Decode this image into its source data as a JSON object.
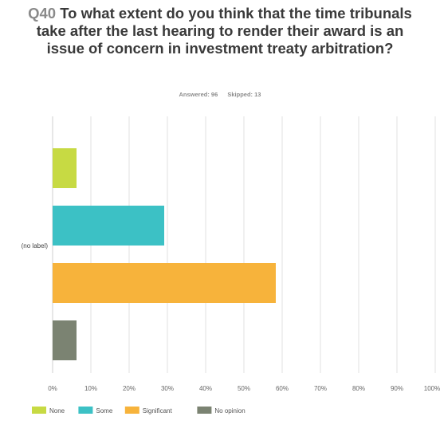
{
  "question": {
    "number": "Q40",
    "text": "To what extent do you think that the time tribunals take after the last hearing to render their award is an issue of concern in investment treaty arbitration?"
  },
  "stats": {
    "answered": "Answered: 96",
    "skipped": "Skipped: 13"
  },
  "chart_data": {
    "type": "bar",
    "orientation": "horizontal",
    "categories": [
      "(no label)"
    ],
    "series": [
      {
        "name": "None",
        "values": [
          6.25
        ],
        "color": "#c7da43"
      },
      {
        "name": "Some",
        "values": [
          29.17
        ],
        "color": "#3cc1c5"
      },
      {
        "name": "Significant",
        "values": [
          58.33
        ],
        "color": "#f7b33b"
      },
      {
        "name": "No opinion",
        "values": [
          6.25
        ],
        "color": "#7b8372"
      }
    ],
    "xlim": [
      0,
      100
    ],
    "x_ticks": [
      "0%",
      "10%",
      "20%",
      "30%",
      "40%",
      "50%",
      "60%",
      "70%",
      "80%",
      "90%",
      "100%"
    ],
    "grid": true,
    "legend_position": "bottom-left"
  }
}
